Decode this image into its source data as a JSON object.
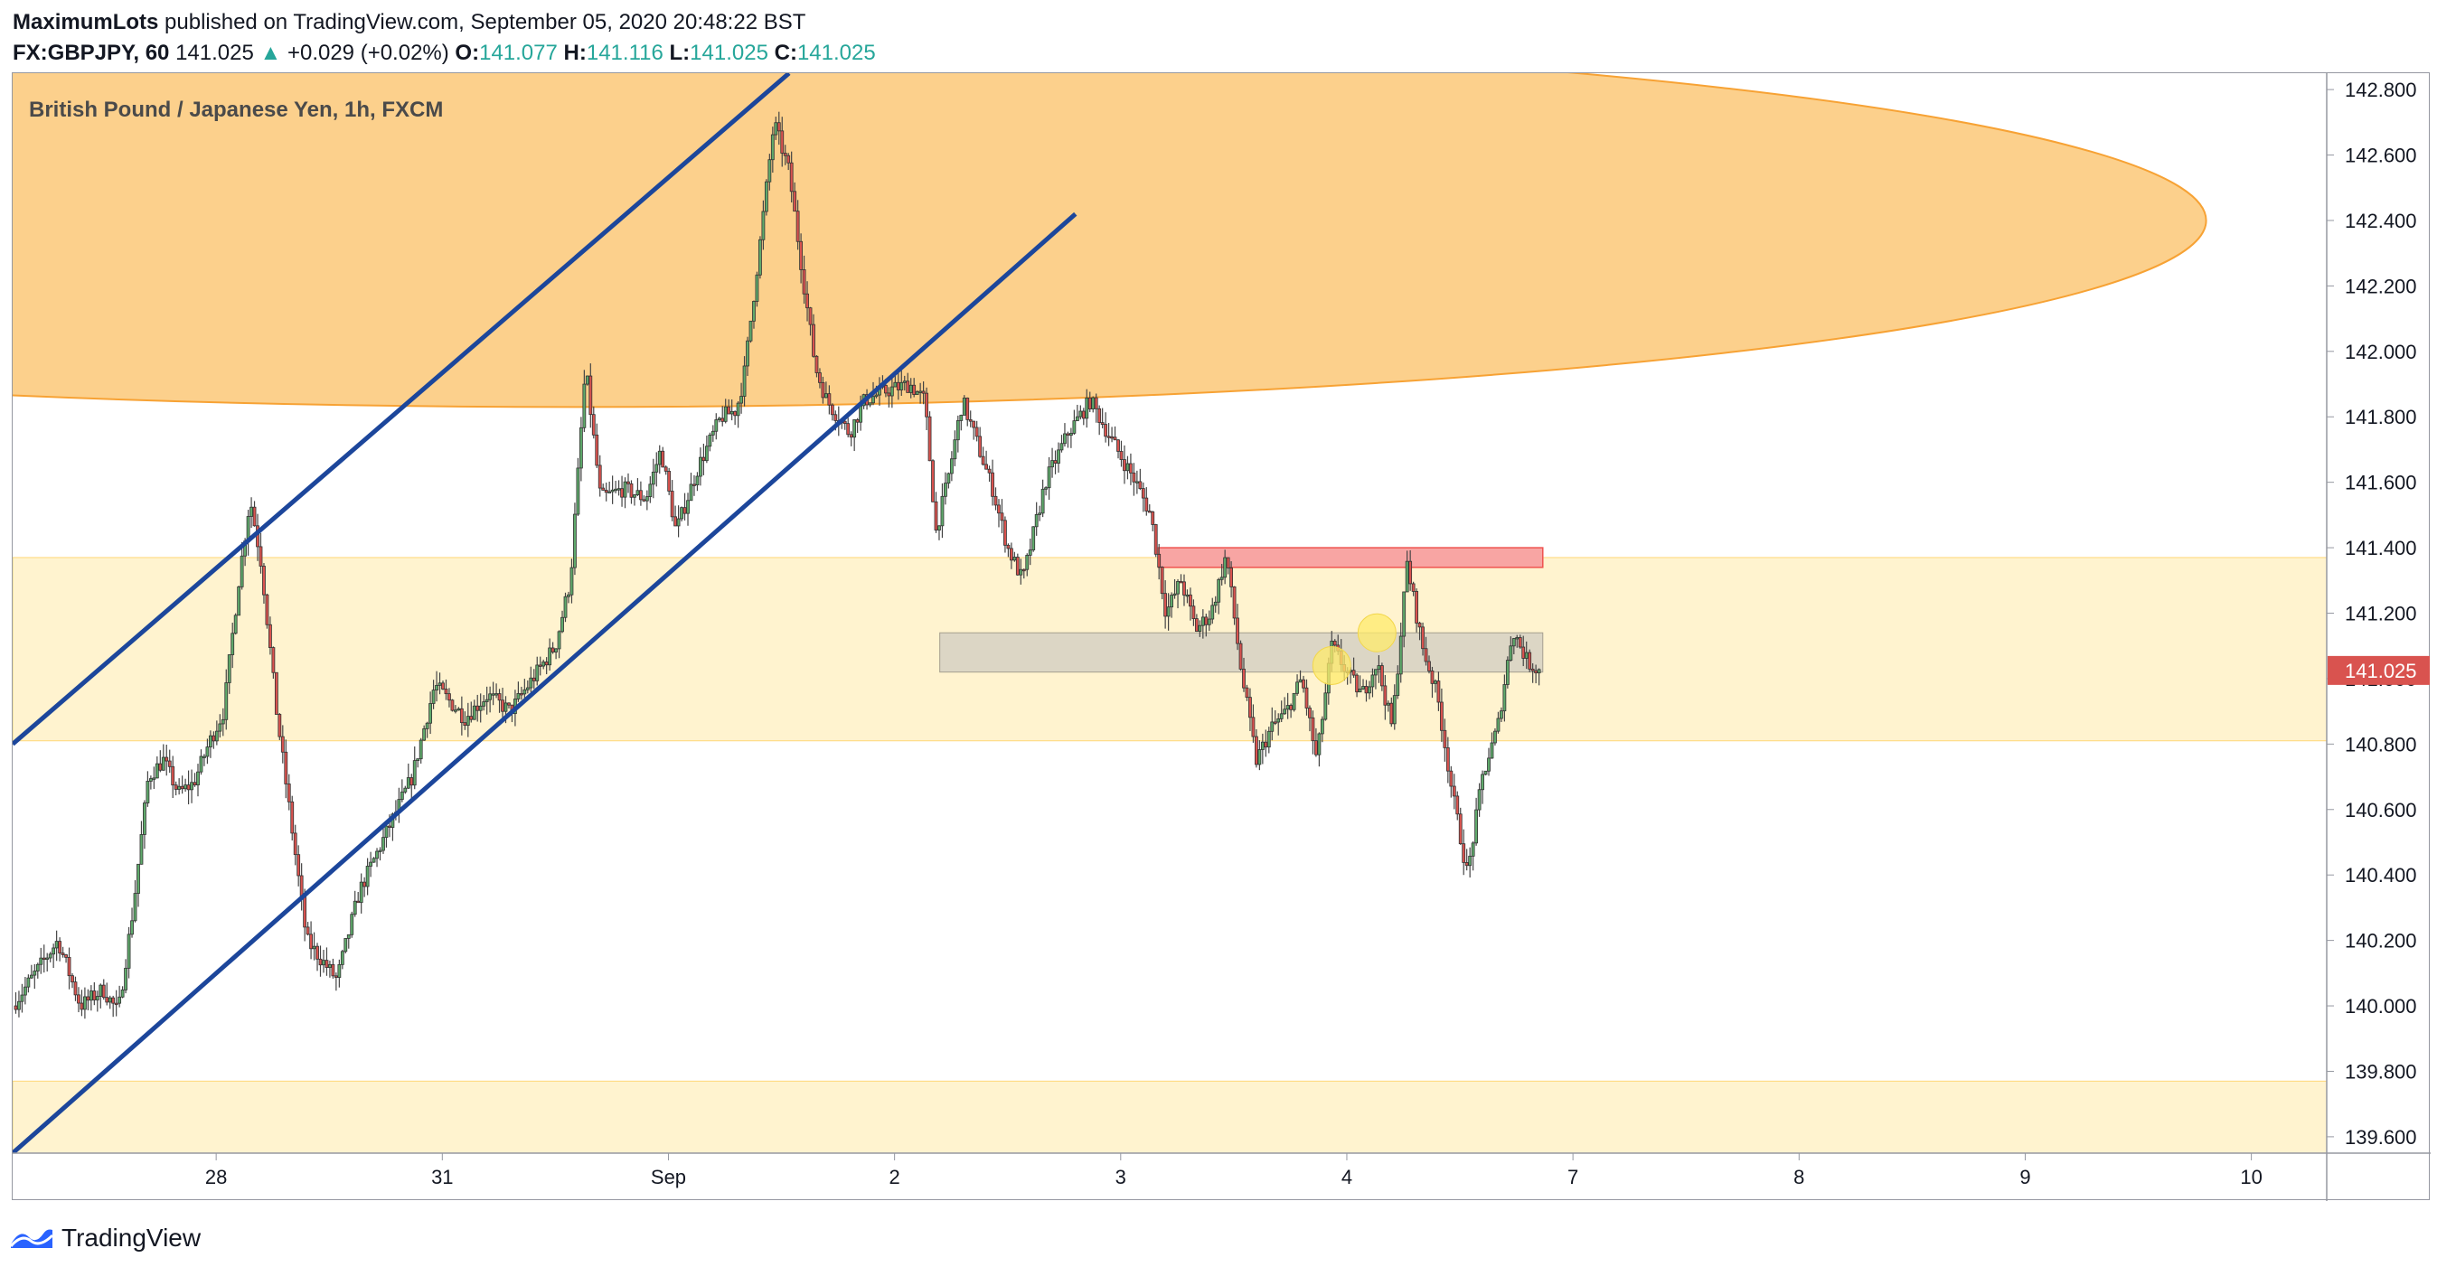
{
  "header": {
    "author": "MaximumLots",
    "published_text": " published on TradingView.com, September 05, 2020 20:48:22 BST",
    "symbol": "FX:GBPJPY, 60",
    "last": "141.025",
    "arrow": "▲",
    "change": "+0.029 (+0.02%)",
    "o_label": "O:",
    "o_value": "141.077",
    "h_label": "H:",
    "h_value": "141.116",
    "l_label": "L:",
    "l_value": "141.025",
    "c_label": "C:",
    "c_value": "141.025"
  },
  "footer": {
    "brand": "TradingView",
    "logo_icon": "tradingview-logo-icon"
  },
  "colors": {
    "up": "#26a69a",
    "down": "#ef5350",
    "body_up": "#5fa96b",
    "body_down": "#d9534f",
    "ellipse_fill": "#fcd08c",
    "ellipse_stroke": "#f7a234",
    "zone_fill": "#fff3cf",
    "zone_border": "#ffd878",
    "gray_box": "#d6d0c3",
    "red_box": "#f8a5a3",
    "red_box_stroke": "#ef5350",
    "channel": "#1c469b",
    "marker": "#ffeb6b",
    "price_label": "#d9534f"
  },
  "chart_data": {
    "type": "candlestick",
    "title": "British Pound / Japanese Yen, 1h, FXCM",
    "ylim": [
      139.55,
      142.85
    ],
    "y_ticks": [
      "142.800",
      "142.600",
      "142.400",
      "142.200",
      "142.000",
      "141.800",
      "141.600",
      "141.400",
      "141.200",
      "141.000",
      "140.800",
      "140.600",
      "140.400",
      "140.200",
      "140.000",
      "139.800",
      "139.600"
    ],
    "x_ticks": [
      {
        "label": "28",
        "day": 0
      },
      {
        "label": "31",
        "day": 3
      },
      {
        "label": "Sep",
        "day": 6
      },
      {
        "label": "2",
        "day": 9
      },
      {
        "label": "3",
        "day": 12
      },
      {
        "label": "4",
        "day": 15
      },
      {
        "label": "7",
        "day": 18
      },
      {
        "label": "8",
        "day": 21
      },
      {
        "label": "9",
        "day": 24
      },
      {
        "label": "10",
        "day": 27
      }
    ],
    "x_range_days": [
      -2.7,
      28.0
    ],
    "current_price": "141.025",
    "anchors": [
      [
        -2.7,
        140.0
      ],
      [
        -2.4,
        140.1
      ],
      [
        -2.1,
        140.2
      ],
      [
        -1.8,
        140.0
      ],
      [
        -1.5,
        140.05
      ],
      [
        -1.3,
        139.98
      ],
      [
        -1.1,
        140.3
      ],
      [
        -0.9,
        140.7
      ],
      [
        -0.7,
        140.75
      ],
      [
        -0.5,
        140.65
      ],
      [
        -0.3,
        140.68
      ],
      [
        -0.1,
        140.8
      ],
      [
        0.1,
        140.9
      ],
      [
        0.3,
        141.3
      ],
      [
        0.45,
        141.55
      ],
      [
        0.6,
        141.35
      ],
      [
        0.8,
        140.9
      ],
      [
        1.2,
        140.2
      ],
      [
        1.6,
        140.08
      ],
      [
        1.9,
        140.35
      ],
      [
        2.2,
        140.5
      ],
      [
        2.6,
        140.7
      ],
      [
        2.9,
        140.98
      ],
      [
        3.3,
        140.88
      ],
      [
        3.6,
        140.95
      ],
      [
        3.9,
        140.9
      ],
      [
        4.2,
        141.0
      ],
      [
        4.5,
        141.1
      ],
      [
        4.7,
        141.3
      ],
      [
        4.9,
        141.95
      ],
      [
        5.1,
        141.55
      ],
      [
        5.4,
        141.58
      ],
      [
        5.7,
        141.55
      ],
      [
        5.9,
        141.7
      ],
      [
        6.1,
        141.45
      ],
      [
        6.4,
        141.65
      ],
      [
        6.7,
        141.8
      ],
      [
        6.9,
        141.82
      ],
      [
        7.0,
        141.92
      ],
      [
        7.2,
        142.3
      ],
      [
        7.4,
        142.7
      ],
      [
        7.6,
        142.55
      ],
      [
        7.8,
        142.2
      ],
      [
        7.95,
        141.95
      ],
      [
        8.1,
        141.85
      ],
      [
        8.4,
        141.75
      ],
      [
        8.6,
        141.85
      ],
      [
        8.9,
        141.88
      ],
      [
        9.2,
        141.9
      ],
      [
        9.4,
        141.85
      ],
      [
        9.55,
        141.45
      ],
      [
        9.7,
        141.6
      ],
      [
        9.9,
        141.85
      ],
      [
        10.05,
        141.75
      ],
      [
        10.3,
        141.58
      ],
      [
        10.5,
        141.4
      ],
      [
        10.7,
        141.3
      ],
      [
        11.0,
        141.6
      ],
      [
        11.3,
        141.75
      ],
      [
        11.6,
        141.85
      ],
      [
        11.9,
        141.72
      ],
      [
        12.2,
        141.6
      ],
      [
        12.4,
        141.5
      ],
      [
        12.6,
        141.2
      ],
      [
        12.8,
        141.3
      ],
      [
        13.0,
        141.15
      ],
      [
        13.2,
        141.2
      ],
      [
        13.4,
        141.38
      ],
      [
        13.6,
        141.02
      ],
      [
        13.8,
        140.75
      ],
      [
        14.0,
        140.85
      ],
      [
        14.2,
        140.9
      ],
      [
        14.4,
        141.0
      ],
      [
        14.6,
        140.75
      ],
      [
        14.8,
        141.1
      ],
      [
        15.0,
        141.02
      ],
      [
        15.2,
        140.95
      ],
      [
        15.4,
        141.05
      ],
      [
        15.6,
        140.85
      ],
      [
        15.8,
        141.35
      ],
      [
        16.0,
        141.1
      ],
      [
        16.2,
        140.95
      ],
      [
        16.4,
        140.65
      ],
      [
        16.6,
        140.4
      ],
      [
        16.8,
        140.7
      ],
      [
        17.0,
        140.85
      ],
      [
        17.2,
        141.15
      ],
      [
        17.4,
        141.05
      ],
      [
        17.55,
        141.025
      ]
    ],
    "annotations": {
      "ellipse": {
        "cx_day": 4.8,
        "cy": 142.4,
        "rx_days": 21.6,
        "ry": 0.57
      },
      "channel_upper": {
        "from": [
          -2.7,
          140.8
        ],
        "to": [
          7.6,
          142.85
        ]
      },
      "channel_lower": {
        "from": [
          -2.7,
          139.55
        ],
        "to": [
          11.4,
          142.42
        ]
      },
      "resistance_zone": [
        140.81,
        141.37
      ],
      "lower_zone": [
        139.55,
        139.77
      ],
      "support_box": {
        "x_days": [
          9.6,
          17.6
        ],
        "y": [
          141.02,
          141.14
        ]
      },
      "red_box": {
        "x_days": [
          12.5,
          17.6
        ],
        "y": [
          141.34,
          141.4
        ]
      },
      "markers": [
        {
          "day": 14.8,
          "price": 141.04
        },
        {
          "day": 15.4,
          "price": 141.14
        }
      ]
    }
  }
}
